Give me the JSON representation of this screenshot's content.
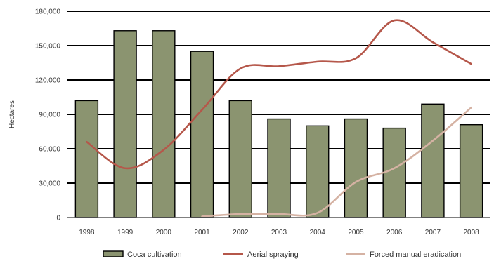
{
  "chart_data": {
    "type": "bar",
    "categories": [
      "1998",
      "1999",
      "2000",
      "2001",
      "2002",
      "2003",
      "2004",
      "2005",
      "2006",
      "2007",
      "2008"
    ],
    "ylabel": "Hectares",
    "xlabel": "",
    "ylim": [
      0,
      180000
    ],
    "yticks": [
      0,
      30000,
      60000,
      90000,
      120000,
      150000,
      180000
    ],
    "ytick_labels": [
      "0",
      "30,000",
      "60,000",
      "90,000",
      "120,000",
      "150,000",
      "180,000"
    ],
    "grid": true,
    "legend_position": "bottom",
    "series": [
      {
        "name": "Coca cultivation",
        "type": "bar",
        "color": "#8b9470",
        "values": [
          102000,
          163000,
          163000,
          145000,
          102000,
          86000,
          80000,
          86000,
          78000,
          99000,
          81000
        ]
      },
      {
        "name": "Aerial spraying",
        "type": "line",
        "color": "#b5574a",
        "values": [
          66000,
          43000,
          59000,
          94000,
          130000,
          132000,
          136000,
          139000,
          172000,
          153000,
          134000
        ]
      },
      {
        "name": "Forced manual eradication",
        "type": "line",
        "color": "#d5b2a3",
        "values": [
          null,
          null,
          null,
          1000,
          3000,
          3000,
          4000,
          31000,
          43000,
          67000,
          96000
        ]
      }
    ]
  }
}
